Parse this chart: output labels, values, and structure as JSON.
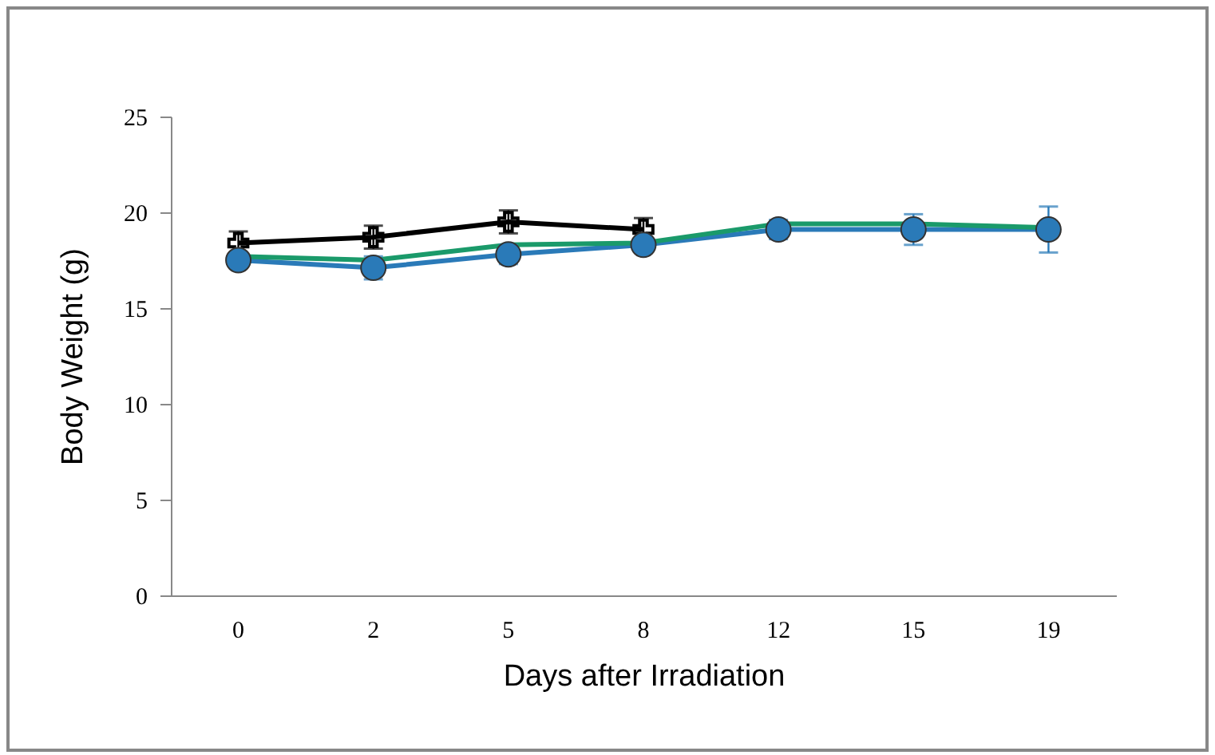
{
  "chart_data": {
    "type": "line",
    "xlabel": "Days after Irradiation",
    "ylabel": "Body Weight (g)",
    "categories": [
      "0",
      "2",
      "5",
      "8",
      "12",
      "15",
      "19"
    ],
    "ylim": [
      0,
      25
    ],
    "yticks": [
      0,
      5,
      10,
      15,
      20,
      25
    ],
    "grid": false,
    "series": [
      {
        "color": "#000000",
        "marker": "cross",
        "values": [
          18.4,
          18.7,
          19.5,
          19.1,
          null,
          null,
          null
        ],
        "errors": [
          0.6,
          0.6,
          0.6,
          0.6,
          null,
          null,
          null
        ]
      },
      {
        "color": "#1a9a6a",
        "marker": "none",
        "values": [
          17.7,
          17.5,
          18.3,
          18.4,
          19.4,
          19.4,
          19.2
        ]
      },
      {
        "color": "#2a7ab8",
        "marker": "circle",
        "values": [
          17.5,
          17.1,
          17.8,
          18.3,
          19.1,
          19.1,
          19.1
        ],
        "errors": [
          0.3,
          0.6,
          0.5,
          0.4,
          0.5,
          0.8,
          1.2
        ]
      }
    ]
  }
}
